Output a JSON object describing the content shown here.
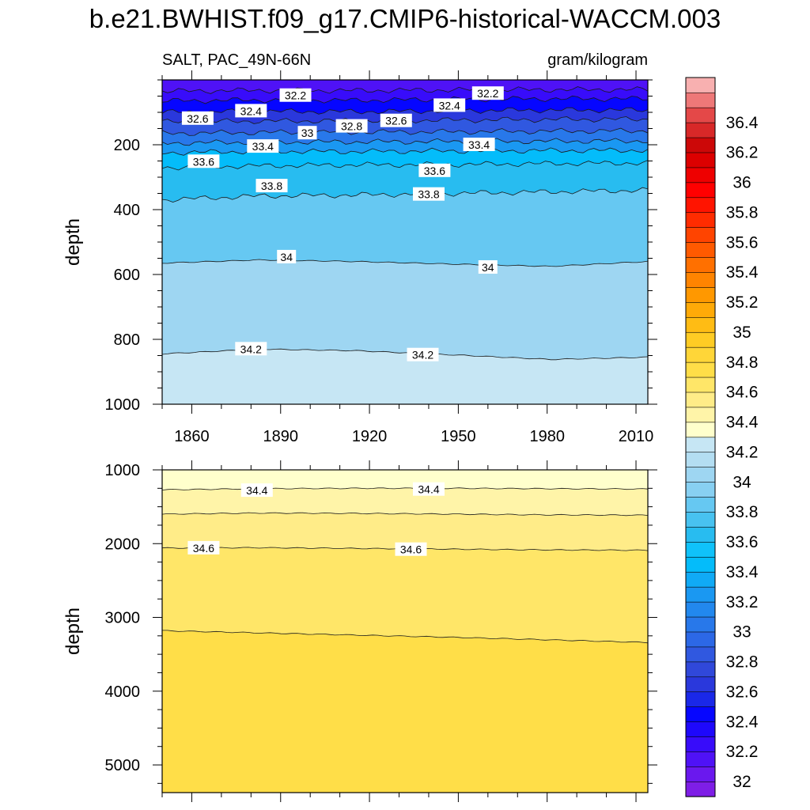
{
  "chart_data": {
    "type": "heatmap",
    "title": "b.e21.BWHIST.f09_g17.CMIP6-historical-WACCM.003",
    "variable": "SALT, PAC_49N-66N",
    "units": "gram/kilogram",
    "colorbar": {
      "levels": [
        31.8,
        32,
        32.1,
        32.2,
        32.3,
        32.4,
        32.5,
        32.6,
        32.7,
        32.8,
        32.9,
        33,
        33.1,
        33.2,
        33.3,
        33.4,
        33.5,
        33.6,
        33.7,
        33.8,
        33.9,
        34,
        34.1,
        34.2,
        34.3,
        34.4,
        34.5,
        34.6,
        34.7,
        34.8,
        34.9,
        35,
        35.1,
        35.2,
        35.3,
        35.4,
        35.5,
        35.6,
        35.7,
        35.8,
        35.9,
        36,
        36.1,
        36.2,
        36.3,
        36.4,
        36.5,
        36.6
      ],
      "colors": [
        "#7e1ee6",
        "#6a18ee",
        "#4f12f6",
        "#380cfa",
        "#1e08fc",
        "#0606ff",
        "#1a28e8",
        "#2a38dc",
        "#3048da",
        "#3058e0",
        "#2c68e6",
        "#2878ea",
        "#2288ee",
        "#1a98f2",
        "#10aaf6",
        "#04bcfa",
        "#10c2fa",
        "#28bcf0",
        "#48c2f0",
        "#66c8f2",
        "#88d0f2",
        "#9ed6f2",
        "#b4def2",
        "#c6e6f4",
        "#ffffcc",
        "#fff4a8",
        "#ffec88",
        "#ffe668",
        "#ffde48",
        "#ffd638",
        "#ffcc24",
        "#ffbc14",
        "#ffaa08",
        "#ff9800",
        "#ff8400",
        "#ff7000",
        "#ff5a00",
        "#ff4400",
        "#ff2c00",
        "#ff1400",
        "#ff0000",
        "#ee0000",
        "#dc0000",
        "#cc0808",
        "#d82828",
        "#e44848",
        "#ee7878",
        "#f8b0b0"
      ],
      "tick_labels": [
        "32",
        "32.2",
        "32.4",
        "32.6",
        "32.8",
        "33",
        "33.2",
        "33.4",
        "33.6",
        "33.8",
        "34",
        "34.2",
        "34.4",
        "34.6",
        "34.8",
        "35",
        "35.2",
        "35.4",
        "35.6",
        "35.8",
        "36",
        "36.2",
        "36.4"
      ]
    },
    "top_panel": {
      "ylabel": "depth",
      "ylim": [
        0,
        1000
      ],
      "y_ticks": [
        "200",
        "400",
        "600",
        "800",
        "1000"
      ],
      "xlim": [
        1850,
        2014
      ],
      "x_ticks": [
        "1860",
        "1890",
        "1920",
        "1950",
        "1980",
        "2010"
      ],
      "contours": [
        {
          "level": 32.2,
          "depths": [
            35,
            32,
            33,
            31,
            30,
            30
          ]
        },
        {
          "level": 32.4,
          "depths": [
            65,
            62,
            63,
            60,
            58,
            58
          ]
        },
        {
          "level": 32.6,
          "depths": [
            100,
            97,
            98,
            95,
            93,
            93
          ]
        },
        {
          "level": 32.8,
          "depths": [
            130,
            127,
            126,
            124,
            122,
            121
          ]
        },
        {
          "level": 33,
          "depths": [
            165,
            162,
            161,
            160,
            158,
            157
          ]
        },
        {
          "level": 33.2,
          "depths": [
            195,
            192,
            191,
            190,
            189,
            188
          ]
        },
        {
          "level": 33.4,
          "depths": [
            225,
            220,
            221,
            219,
            218,
            217
          ]
        },
        {
          "level": 33.6,
          "depths": [
            270,
            265,
            262,
            261,
            258,
            256
          ]
        },
        {
          "level": 33.8,
          "depths": [
            370,
            358,
            355,
            350,
            345,
            340
          ]
        },
        {
          "level": 34,
          "depths": [
            565,
            555,
            560,
            568,
            575,
            560
          ]
        },
        {
          "level": 34.2,
          "depths": [
            845,
            830,
            835,
            848,
            862,
            855
          ]
        }
      ],
      "contour_labels": [
        {
          "text": "32.2",
          "year": 1895,
          "depth": 48
        },
        {
          "text": "32.2",
          "year": 1960,
          "depth": 42
        },
        {
          "text": "32.4",
          "year": 1880,
          "depth": 96
        },
        {
          "text": "32.4",
          "year": 1947,
          "depth": 79
        },
        {
          "text": "32.6",
          "year": 1862,
          "depth": 119
        },
        {
          "text": "32.6",
          "year": 1929,
          "depth": 126
        },
        {
          "text": "32.8",
          "year": 1914,
          "depth": 143
        },
        {
          "text": "33",
          "year": 1899,
          "depth": 164
        },
        {
          "text": "33.4",
          "year": 1884,
          "depth": 205
        },
        {
          "text": "33.4",
          "year": 1957,
          "depth": 200
        },
        {
          "text": "33.6",
          "year": 1864,
          "depth": 252
        },
        {
          "text": "33.6",
          "year": 1942,
          "depth": 280
        },
        {
          "text": "33.8",
          "year": 1887,
          "depth": 327
        },
        {
          "text": "33.8",
          "year": 1940,
          "depth": 353
        },
        {
          "text": "34",
          "year": 1892,
          "depth": 546
        },
        {
          "text": "34",
          "year": 1960,
          "depth": 578
        },
        {
          "text": "34.2",
          "year": 1880,
          "depth": 830
        },
        {
          "text": "34.2",
          "year": 1938,
          "depth": 848
        }
      ]
    },
    "bottom_panel": {
      "ylabel": "depth",
      "ylim": [
        1000,
        5375
      ],
      "y_ticks": [
        "1000",
        "2000",
        "3000",
        "4000",
        "5000"
      ],
      "xlim": [
        1850,
        2014
      ],
      "contours": [
        {
          "level": 34.4,
          "depths": [
            1270,
            1255,
            1250,
            1250,
            1255,
            1260
          ]
        },
        {
          "level": 34.5,
          "depths": [
            1600,
            1585,
            1590,
            1600,
            1610,
            1615
          ]
        },
        {
          "level": 34.6,
          "depths": [
            2060,
            2055,
            2065,
            2075,
            2085,
            2090
          ]
        },
        {
          "level": 34.7,
          "depths": [
            3180,
            3210,
            3240,
            3270,
            3305,
            3340
          ]
        }
      ],
      "contour_labels": [
        {
          "text": "34.4",
          "year": 1882,
          "depth": 1280
        },
        {
          "text": "34.4",
          "year": 1940,
          "depth": 1265
        },
        {
          "text": "34.6",
          "year": 1864,
          "depth": 2060
        },
        {
          "text": "34.6",
          "year": 1934,
          "depth": 2080
        }
      ]
    }
  }
}
